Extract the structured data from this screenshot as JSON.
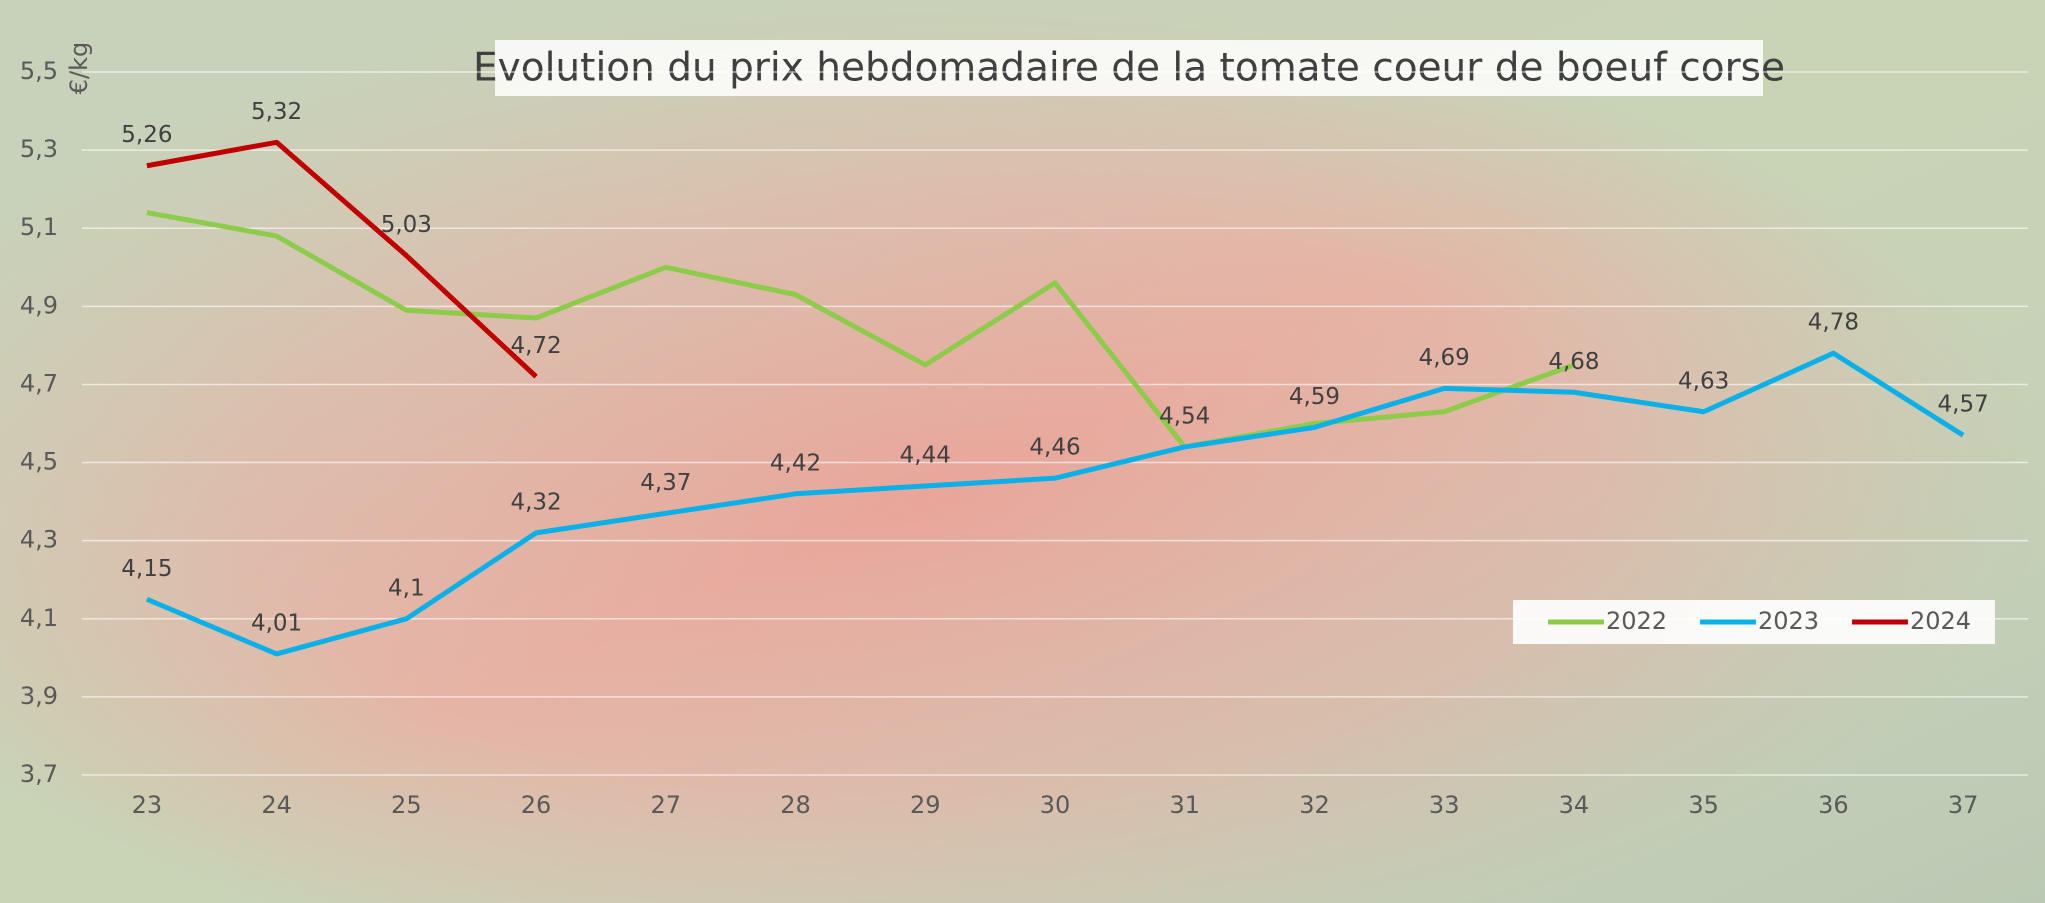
{
  "chart_data": {
    "type": "line",
    "title": "Evolution du prix hebdomadaire de la tomate coeur de boeuf corse",
    "y_label": "€/kg",
    "categories": [
      "23",
      "24",
      "25",
      "26",
      "27",
      "28",
      "29",
      "30",
      "31",
      "32",
      "33",
      "34",
      "35",
      "36",
      "37"
    ],
    "ylim": [
      3.7,
      5.5
    ],
    "yticks": [
      {
        "value": 3.7,
        "label": "3,7"
      },
      {
        "value": 3.9,
        "label": "3,9"
      },
      {
        "value": 4.1,
        "label": "4,1"
      },
      {
        "value": 4.3,
        "label": "4,3"
      },
      {
        "value": 4.5,
        "label": "4,5"
      },
      {
        "value": 4.7,
        "label": "4,7"
      },
      {
        "value": 4.9,
        "label": "4,9"
      },
      {
        "value": 5.1,
        "label": "5,1"
      },
      {
        "value": 5.3,
        "label": "5,3"
      },
      {
        "value": 5.5,
        "label": "5,5"
      }
    ],
    "grid": true,
    "legend": "bottom-right",
    "series": [
      {
        "name": "2022",
        "color": "#8dcb4a",
        "values": [
          5.14,
          5.08,
          4.89,
          4.87,
          5.0,
          4.93,
          4.75,
          4.96,
          4.54,
          4.6,
          4.63,
          4.75,
          null,
          null,
          null
        ]
      },
      {
        "name": "2023",
        "color": "#0ab0e8",
        "values": [
          4.15,
          4.01,
          4.1,
          4.32,
          4.37,
          4.42,
          4.44,
          4.46,
          4.54,
          4.59,
          4.69,
          4.68,
          4.63,
          4.78,
          4.57
        ],
        "value_labels": [
          "4,15",
          "4,01",
          "4,1",
          "4,32",
          "4,37",
          "4,42",
          "4,44",
          "4,46",
          "4,54",
          "4,59",
          "4,69",
          "4,68",
          "4,63",
          "4,78",
          "4,57"
        ]
      },
      {
        "name": "2024",
        "color": "#c00000",
        "values": [
          5.26,
          5.32,
          5.03,
          4.72,
          null,
          null,
          null,
          null,
          null,
          null,
          null,
          null,
          null,
          null,
          null
        ],
        "value_labels": [
          "5,26",
          "5,32",
          "5,03",
          "4,72",
          null,
          null,
          null,
          null,
          null,
          null,
          null,
          null,
          null,
          null,
          null
        ]
      }
    ]
  }
}
